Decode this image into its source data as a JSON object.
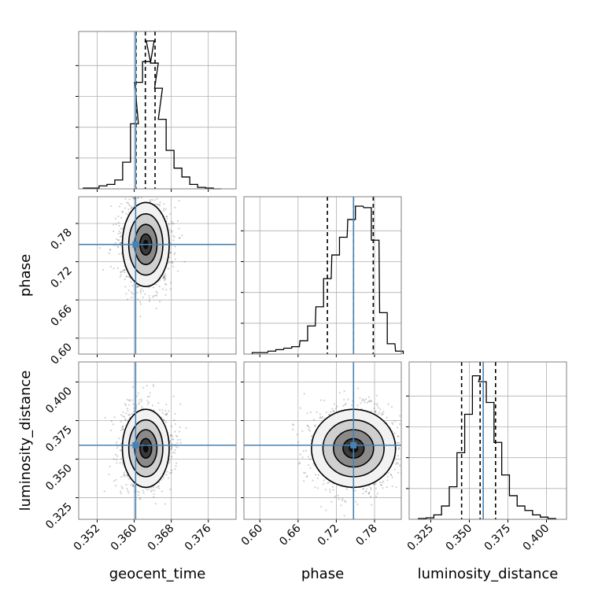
{
  "chart_data": {
    "type": "corner",
    "grid": true,
    "truth_color": "#4682b4",
    "parameters": [
      "geocent_time",
      "phase",
      "luminosity_distance"
    ],
    "axis_labels": {
      "geocent_time": "geocent_time",
      "phase": "phase",
      "luminosity_distance": "luminosity_distance"
    },
    "ranges": {
      "geocent_time": [
        0.348,
        0.382
      ],
      "phase": [
        0.575,
        0.822
      ],
      "luminosity_distance": [
        0.311,
        0.413
      ]
    },
    "ticks": {
      "geocent_time": [
        0.352,
        0.36,
        0.368,
        0.376
      ],
      "phase": [
        0.6,
        0.66,
        0.72,
        0.78
      ],
      "luminosity_distance": [
        0.325,
        0.35,
        0.375,
        0.4
      ]
    },
    "tick_labels": {
      "geocent_time": [
        "0.352",
        "0.360",
        "0.368",
        "0.376"
      ],
      "phase": [
        "0.60",
        "0.66",
        "0.72",
        "0.78"
      ],
      "luminosity_distance": [
        "0.325",
        "0.350",
        "0.375",
        "0.400"
      ]
    },
    "truths": {
      "geocent_time": 0.3603,
      "phase": 0.747,
      "luminosity_distance": 0.359
    },
    "quantiles": {
      "geocent_time": [
        0.3604,
        0.3624,
        0.3645
      ],
      "phase": [
        0.706,
        0.747,
        0.778
      ],
      "luminosity_distance": [
        0.345,
        0.357,
        0.367
      ]
    },
    "histograms": {
      "geocent_time": [
        {
          "edge": 0.349,
          "count": 0.005
        },
        {
          "edge": 0.3507,
          "count": 0.005
        },
        {
          "edge": 0.3524,
          "count": 0.02
        },
        {
          "edge": 0.3541,
          "count": 0.03
        },
        {
          "edge": 0.3558,
          "count": 0.06
        },
        {
          "edge": 0.3575,
          "count": 0.18
        },
        {
          "edge": 0.3592,
          "count": 0.44
        },
        {
          "edge": 0.3601,
          "count": 0.72
        },
        {
          "edge": 0.3618,
          "count": 0.86
        },
        {
          "edge": 0.3626,
          "count": 1.0
        },
        {
          "edge": 0.3635,
          "count": 0.85
        },
        {
          "edge": 0.3644,
          "count": 0.68
        },
        {
          "edge": 0.3652,
          "count": 0.47
        },
        {
          "edge": 0.3669,
          "count": 0.26
        },
        {
          "edge": 0.3686,
          "count": 0.14
        },
        {
          "edge": 0.3703,
          "count": 0.08
        },
        {
          "edge": 0.372,
          "count": 0.03
        },
        {
          "edge": 0.3737,
          "count": 0.01
        },
        {
          "edge": 0.3754,
          "count": 0.005
        },
        {
          "edge": 0.3771,
          "count": 0.0
        }
      ],
      "phase": [
        {
          "edge": 0.588,
          "count": 0.01
        },
        {
          "edge": 0.6,
          "count": 0.01
        },
        {
          "edge": 0.613,
          "count": 0.02
        },
        {
          "edge": 0.625,
          "count": 0.03
        },
        {
          "edge": 0.638,
          "count": 0.04
        },
        {
          "edge": 0.65,
          "count": 0.05
        },
        {
          "edge": 0.663,
          "count": 0.09
        },
        {
          "edge": 0.675,
          "count": 0.19
        },
        {
          "edge": 0.688,
          "count": 0.32
        },
        {
          "edge": 0.7,
          "count": 0.51
        },
        {
          "edge": 0.713,
          "count": 0.67
        },
        {
          "edge": 0.725,
          "count": 0.79
        },
        {
          "edge": 0.738,
          "count": 0.91
        },
        {
          "edge": 0.75,
          "count": 1.0
        },
        {
          "edge": 0.763,
          "count": 0.99
        },
        {
          "edge": 0.775,
          "count": 0.77
        },
        {
          "edge": 0.788,
          "count": 0.28
        },
        {
          "edge": 0.8,
          "count": 0.07
        },
        {
          "edge": 0.813,
          "count": 0.02
        }
      ],
      "luminosity_distance": [
        {
          "edge": 0.317,
          "count": 0.005
        },
        {
          "edge": 0.322,
          "count": 0.01
        },
        {
          "edge": 0.327,
          "count": 0.03
        },
        {
          "edge": 0.332,
          "count": 0.09
        },
        {
          "edge": 0.337,
          "count": 0.22
        },
        {
          "edge": 0.342,
          "count": 0.45
        },
        {
          "edge": 0.347,
          "count": 0.71
        },
        {
          "edge": 0.352,
          "count": 0.97
        },
        {
          "edge": 0.356,
          "count": 0.93
        },
        {
          "edge": 0.361,
          "count": 0.79
        },
        {
          "edge": 0.366,
          "count": 0.52
        },
        {
          "edge": 0.371,
          "count": 0.3
        },
        {
          "edge": 0.376,
          "count": 0.16
        },
        {
          "edge": 0.381,
          "count": 0.09
        },
        {
          "edge": 0.386,
          "count": 0.06
        },
        {
          "edge": 0.391,
          "count": 0.03
        },
        {
          "edge": 0.396,
          "count": 0.015
        },
        {
          "edge": 0.401,
          "count": 0.005
        }
      ]
    },
    "posterior_centers": {
      "geocent_time": 0.3625,
      "phase": 0.747,
      "luminosity_distance": 0.357
    },
    "posterior_spreads": {
      "geocent_time": 0.0023,
      "phase": 0.03,
      "luminosity_distance": 0.0115
    }
  }
}
